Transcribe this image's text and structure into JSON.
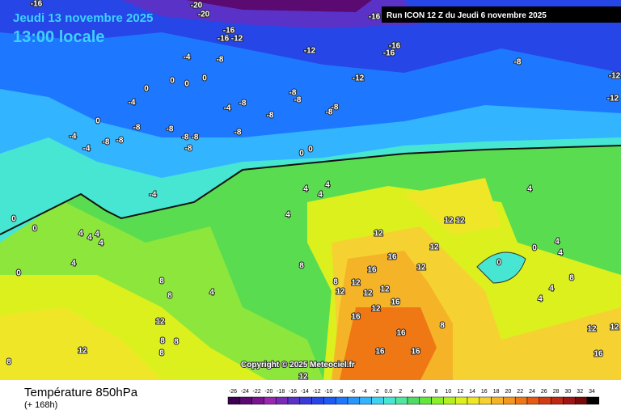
{
  "header": {
    "date": "Jeudi 13 novembre 2025",
    "time": "13:00 locale",
    "run": "Run ICON 12 Z du Jeudi 6 novembre 2025"
  },
  "copyright": "Copyright © 2025 Meteociel.fr",
  "footer": {
    "title": "Température 850hPa",
    "lead": "(+ 168h)"
  },
  "legend": {
    "labels": [
      "-26",
      "-24",
      "-22",
      "-20",
      "-18",
      "-16",
      "-14",
      "-12",
      "-10",
      "-8",
      "-6",
      "-4",
      "-2",
      "0.0",
      "2",
      "4",
      "6",
      "8",
      "10",
      "12",
      "14",
      "16",
      "18",
      "20",
      "22",
      "24",
      "26",
      "28",
      "30",
      "32",
      "34"
    ],
    "colors": [
      "#3c0050",
      "#5a0a70",
      "#7a1490",
      "#9b28b0",
      "#7a2ab8",
      "#5a32c8",
      "#3a3ad8",
      "#2646e8",
      "#1e5af5",
      "#1e78ff",
      "#2896ff",
      "#32b4ff",
      "#3cd2f0",
      "#46e6d2",
      "#50e6a0",
      "#50dc64",
      "#64e63c",
      "#8cf028",
      "#b4f01e",
      "#dcf01e",
      "#f0e628",
      "#f5d232",
      "#f5b428",
      "#f5961e",
      "#f07814",
      "#e65a14",
      "#d23c14",
      "#be2814",
      "#a01414",
      "#780a0a",
      "#000000"
    ]
  },
  "map_labels": [
    "-16",
    "-20",
    "-20",
    "-16",
    "-16",
    "-16",
    "-12",
    "-12",
    "-16",
    "-16",
    "-4",
    "-8",
    "-8",
    "-12",
    "-12",
    "-12",
    "0",
    "0",
    "0",
    "0",
    "-4",
    "-8",
    "-8",
    "-8",
    "-8",
    "-4",
    "-8",
    "-8",
    "0",
    "-4",
    "-8",
    "-8",
    "-8",
    "-8",
    "-8",
    "-8",
    "-8",
    "-4",
    "-8",
    "0",
    "0",
    "-4",
    "4",
    "4",
    "4",
    "4",
    "4",
    "12",
    "12",
    "0",
    "0",
    "4",
    "4",
    "4",
    "4",
    "4",
    "0",
    "12",
    "12",
    "12",
    "16",
    "16",
    "0",
    "0",
    "4",
    "4",
    "8",
    "8",
    "4",
    "8",
    "8",
    "8",
    "12",
    "12",
    "12",
    "12",
    "16",
    "12",
    "16",
    "4",
    "4",
    "8",
    "16",
    "12",
    "12",
    "16",
    "16",
    "16",
    "12",
    "8",
    "8",
    "8",
    "12",
    "8",
    "12"
  ]
}
